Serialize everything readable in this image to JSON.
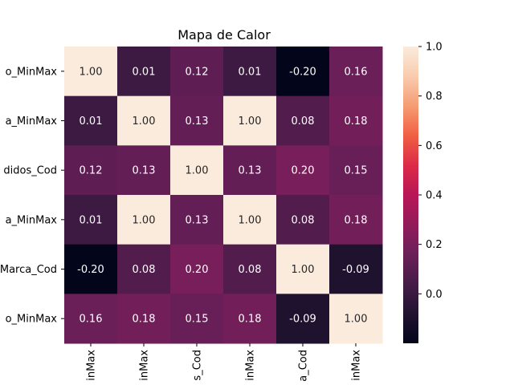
{
  "chart_data": {
    "type": "heatmap",
    "title": "Mapa de Calor",
    "row_labels": [
      "o_MinMax",
      "a_MinMax",
      "didos_Cod",
      "a_MinMax",
      "Marca_Cod",
      "o_MinMax"
    ],
    "col_labels": [
      "inMax",
      "inMax",
      "s_Cod",
      "inMax",
      "a_Cod",
      "inMax"
    ],
    "values": [
      [
        1.0,
        0.01,
        0.12,
        0.01,
        -0.2,
        0.16
      ],
      [
        0.01,
        1.0,
        0.13,
        1.0,
        0.08,
        0.18
      ],
      [
        0.12,
        0.13,
        1.0,
        0.13,
        0.2,
        0.15
      ],
      [
        0.01,
        1.0,
        0.13,
        1.0,
        0.08,
        0.18
      ],
      [
        -0.2,
        0.08,
        0.2,
        0.08,
        1.0,
        -0.09
      ],
      [
        0.16,
        0.18,
        0.15,
        0.18,
        -0.09,
        1.0
      ]
    ],
    "colorbar": {
      "range": [
        -0.2,
        1.0
      ],
      "ticks": [
        0.0,
        0.2,
        0.4,
        0.6,
        0.8,
        1.0
      ],
      "tick_labels": [
        "0.0",
        "0.2",
        "0.4",
        "0.6",
        "0.8",
        "1.0"
      ]
    },
    "colormap_stops": [
      [
        0.0,
        "#03051a"
      ],
      [
        0.1,
        "#221331"
      ],
      [
        0.2,
        "#451c47"
      ],
      [
        0.3,
        "#6b1f59"
      ],
      [
        0.4,
        "#921c5b"
      ],
      [
        0.5,
        "#b91657"
      ],
      [
        0.6,
        "#dc2b48"
      ],
      [
        0.7,
        "#f06043"
      ],
      [
        0.8,
        "#f69c73"
      ],
      [
        0.9,
        "#f8ccae"
      ],
      [
        1.0,
        "#faebdd"
      ]
    ]
  }
}
